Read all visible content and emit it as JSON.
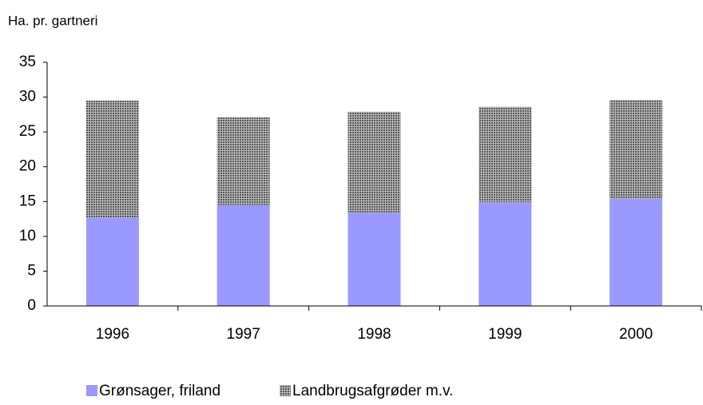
{
  "chart_data": {
    "type": "stacked_bar",
    "y_axis_label": "Ha. pr. gartneri",
    "categories": [
      "1996",
      "1997",
      "1998",
      "1999",
      "2000"
    ],
    "series": [
      {
        "name": "Grønsager, friland",
        "color": "#9999ff",
        "values": [
          12.7,
          14.5,
          13.4,
          14.9,
          15.4
        ]
      },
      {
        "name": "Landbrugsafgrøder m.v.",
        "color": "#555555",
        "pattern": "dots",
        "values": [
          16.8,
          12.6,
          14.5,
          13.7,
          14.2
        ]
      }
    ],
    "ylim": [
      0,
      35
    ],
    "yticks": [
      0,
      5,
      10,
      15,
      20,
      25,
      30,
      35
    ],
    "grid": false,
    "legend": "bottom"
  }
}
